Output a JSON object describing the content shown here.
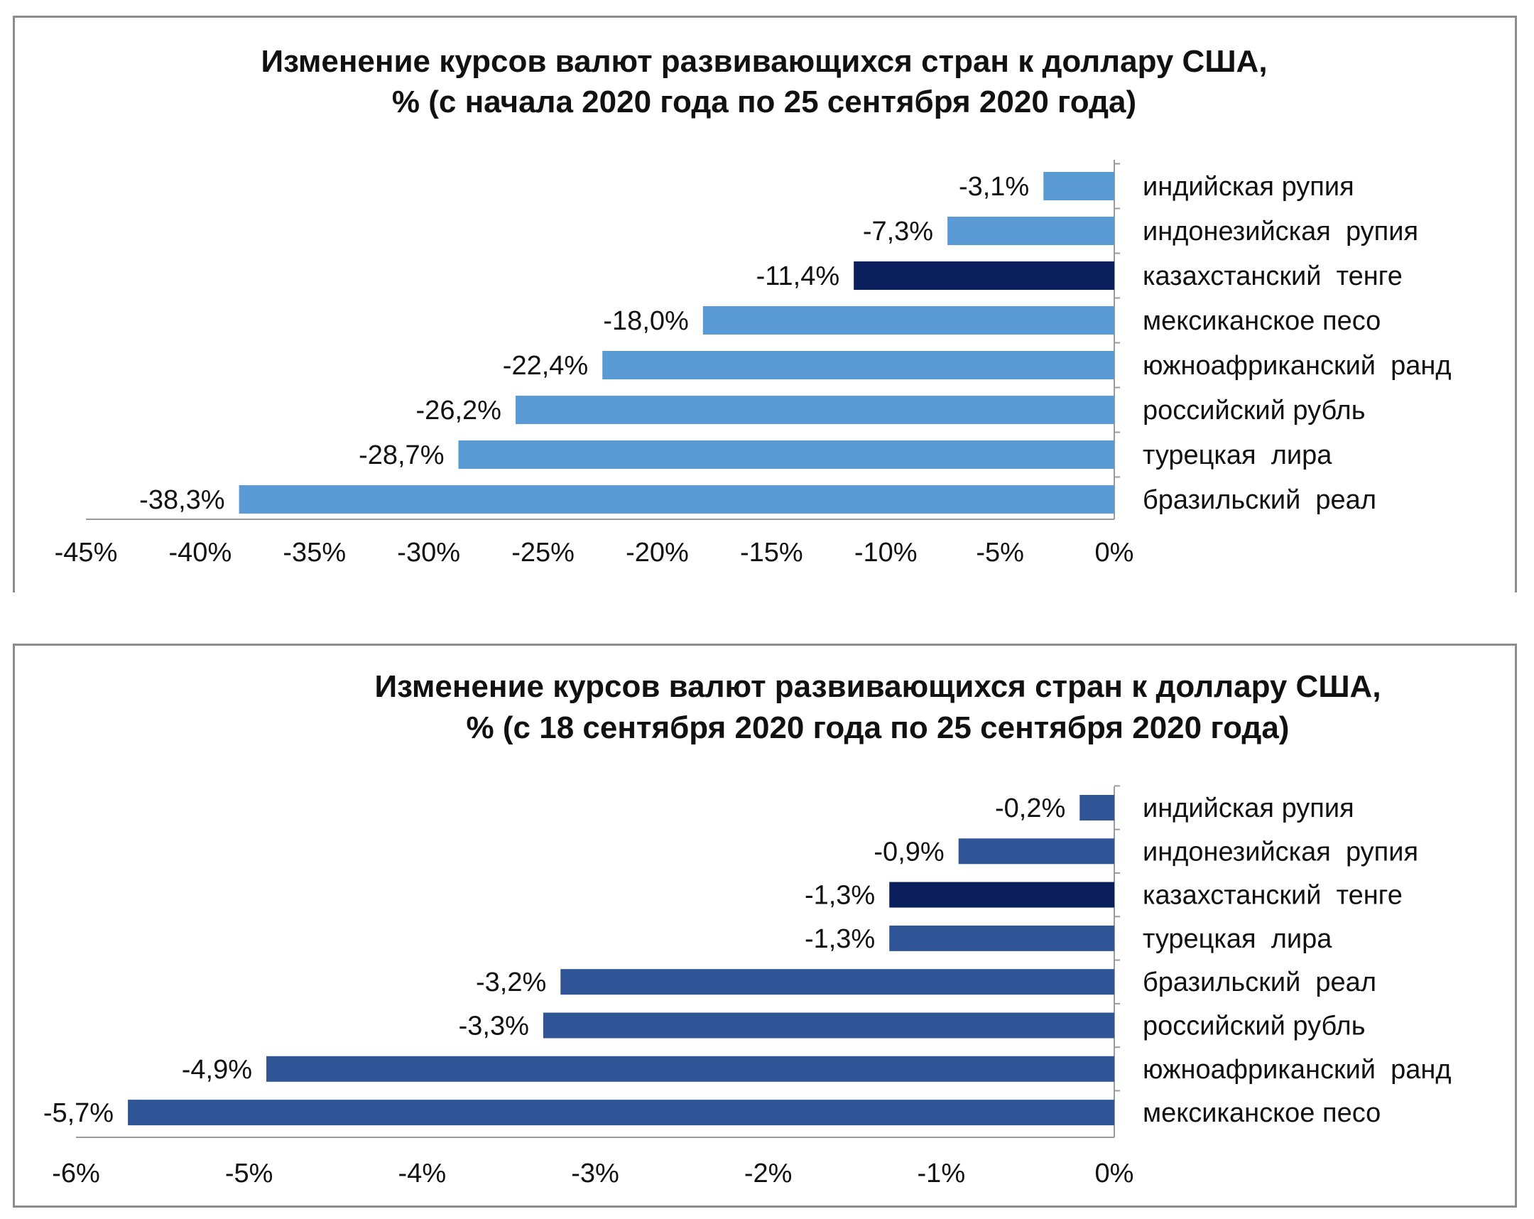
{
  "chart_data": [
    {
      "type": "bar",
      "orientation": "horizontal",
      "title": "Изменение курсов валют развивающихся стран  к доллару США,",
      "subtitle": "% (с начала 2020 года по 25 сентября 2020 года)",
      "categories": [
        "индийская рупия",
        "индонезийская  рупия",
        "казахстанский  тенге",
        "мексиканское песо",
        "южноафриканский  ранд",
        "российский рубль",
        "турецкая  лира",
        "бразильский  реал"
      ],
      "values": [
        -3.1,
        -7.3,
        -11.4,
        -18.0,
        -22.4,
        -26.2,
        -28.7,
        -38.3
      ],
      "value_labels": [
        "-3,1%",
        "-7,3%",
        "-11,4%",
        "-18,0%",
        "-22,4%",
        "-26,2%",
        "-28,7%",
        "-38,3%"
      ],
      "highlight_index": 2,
      "xlim": [
        -45,
        0
      ],
      "x_ticks": [
        -45,
        -40,
        -35,
        -30,
        -25,
        -20,
        -15,
        -10,
        -5,
        0
      ],
      "x_tick_labels": [
        "-45%",
        "-40%",
        "-35%",
        "-30%",
        "-25%",
        "-20%",
        "-15%",
        "-10%",
        "-5%",
        "0%"
      ],
      "grid": false,
      "legend": "none",
      "colors": {
        "bar": "#5b9bd5",
        "highlight": "#0b1f5c",
        "axis": "#9a9a9a"
      }
    },
    {
      "type": "bar",
      "orientation": "horizontal",
      "title": "Изменение курсов валют развивающихся стран  к доллару США,",
      "subtitle": "% (с 18 сентября 2020 года по 25  сентября 2020 года)",
      "categories": [
        "индийская рупия",
        "индонезийская  рупия",
        "казахстанский  тенге",
        "турецкая  лира",
        "бразильский  реал",
        "российский рубль",
        "южноафриканский  ранд",
        "мексиканское песо"
      ],
      "values": [
        -0.2,
        -0.9,
        -1.3,
        -1.3,
        -3.2,
        -3.3,
        -4.9,
        -5.7
      ],
      "value_labels": [
        "-0,2%",
        "-0,9%",
        "-1,3%",
        "-1,3%",
        "-3,2%",
        "-3,3%",
        "-4,9%",
        "-5,7%"
      ],
      "highlight_index": 2,
      "xlim": [
        -6,
        0
      ],
      "x_ticks": [
        -6,
        -5,
        -4,
        -3,
        -2,
        -1,
        0
      ],
      "x_tick_labels": [
        "-6%",
        "-5%",
        "-4%",
        "-3%",
        "-2%",
        "-1%",
        "0%"
      ],
      "grid": false,
      "legend": "none",
      "colors": {
        "bar": "#2f5597",
        "highlight": "#0b1f5c",
        "axis": "#9a9a9a"
      }
    }
  ]
}
